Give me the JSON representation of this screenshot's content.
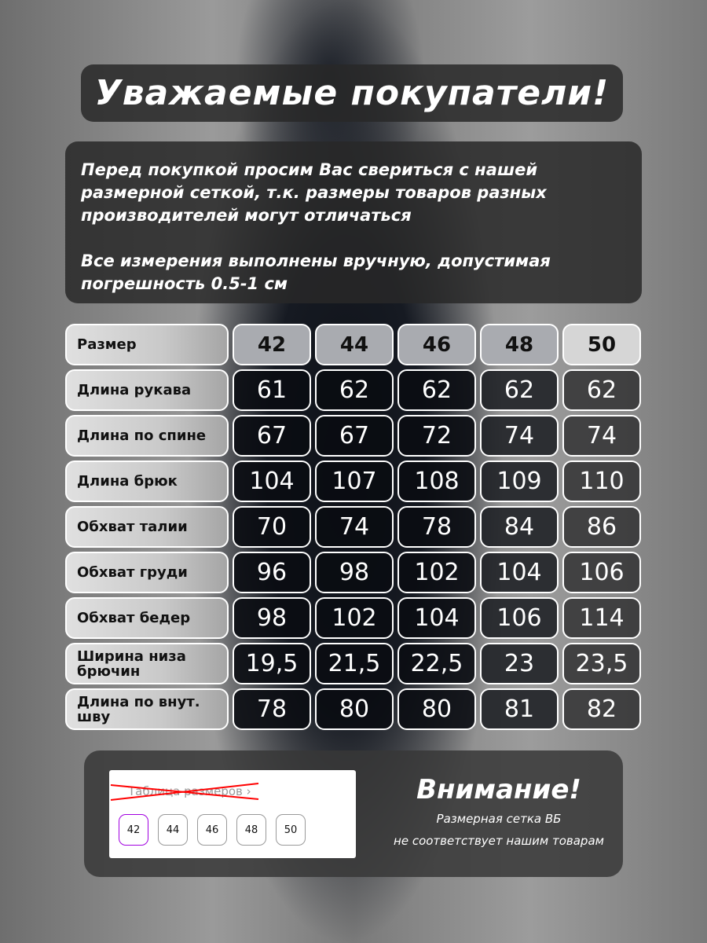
{
  "title": "Уважаемые покупатели!",
  "info": {
    "p1": "Перед покупкой просим Вас свериться с нашей размерной сеткой, т.к. размеры товаров разных производителей могут отличаться",
    "p2": "Все измерения выполнены вручную, допустимая погрешность 0.5-1 см"
  },
  "table": {
    "header": {
      "label": "Размер",
      "sizes": [
        "42",
        "44",
        "46",
        "48",
        "50"
      ]
    },
    "rows": [
      {
        "label": "Длина рукава",
        "values": [
          "61",
          "62",
          "62",
          "62",
          "62"
        ]
      },
      {
        "label": "Длина по спине",
        "values": [
          "67",
          "67",
          "72",
          "74",
          "74"
        ]
      },
      {
        "label": "Длина брюк",
        "values": [
          "104",
          "107",
          "108",
          "109",
          "110"
        ]
      },
      {
        "label": "Обхват талии",
        "values": [
          "70",
          "74",
          "78",
          "84",
          "86"
        ]
      },
      {
        "label": "Обхват груди",
        "values": [
          "96",
          "98",
          "102",
          "104",
          "106"
        ]
      },
      {
        "label": "Обхват бедер",
        "values": [
          "98",
          "102",
          "104",
          "106",
          "114"
        ]
      },
      {
        "label": "Ширина низа брючин",
        "values": [
          "19,5",
          "21,5",
          "22,5",
          "23",
          "23,5"
        ]
      },
      {
        "label": "Длина по внут. шву",
        "values": [
          "78",
          "80",
          "80",
          "81",
          "82"
        ]
      }
    ]
  },
  "notice": {
    "wb_link": "Таблица размеров ›",
    "wb_sizes": [
      "42",
      "44",
      "46",
      "48",
      "50"
    ],
    "heading": "Внимание!",
    "line1": "Размерная сетка ВБ",
    "line2": "не соответствует нашим товарам",
    "selected_color": "#a100e0",
    "cross_color": "#ff0000"
  }
}
